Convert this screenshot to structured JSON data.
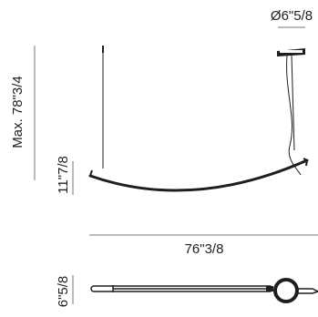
{
  "figure": {
    "kind": "technical-dimension-drawing",
    "subject": "suspension-lamp",
    "views": [
      "front-elevation",
      "top-plan"
    ]
  },
  "dimensions": {
    "canopy_diameter": "Ø6\"5/8",
    "max_height": "Max. 78\"3/4",
    "lamp_height": "11\"7/8",
    "overall_width": "76\"3/8",
    "plan_depth": "6\"5/8"
  },
  "colors": {
    "line": "#1e1e1e",
    "dim_line": "#777777",
    "background": "#ffffff"
  }
}
